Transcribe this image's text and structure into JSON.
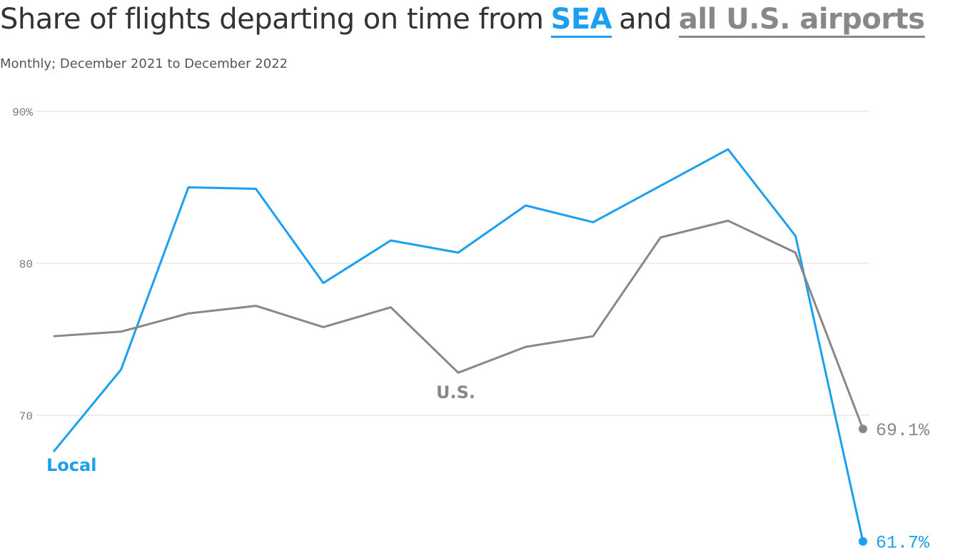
{
  "chart_data": {
    "type": "line",
    "title": "Share of flights departing on time from",
    "title_joiner": "and",
    "subtitle": "Monthly; December 2021 to December 2022",
    "series": [
      {
        "name": "SEA",
        "label": "Local",
        "color": "#1d9ff0",
        "values": [
          67.6,
          73.0,
          85.0,
          84.9,
          78.7,
          81.5,
          80.7,
          83.8,
          82.7,
          85.1,
          87.5,
          81.8,
          61.7
        ],
        "value_labels": [
          null,
          null,
          null,
          null,
          null,
          null,
          null,
          null,
          null,
          null,
          null,
          null,
          "61.7%"
        ]
      },
      {
        "name": "all U.S. airports",
        "label": "U.S.",
        "color": "#888888",
        "values": [
          75.2,
          75.5,
          76.7,
          77.2,
          75.8,
          77.1,
          72.8,
          74.5,
          75.2,
          81.7,
          82.8,
          80.7,
          69.1
        ],
        "value_labels": [
          null,
          null,
          null,
          null,
          null,
          null,
          null,
          null,
          null,
          null,
          null,
          null,
          "69.1%"
        ]
      }
    ],
    "ylim": [
      61.5,
      91.5
    ],
    "yticks": [
      70,
      80,
      {
        "value": 90,
        "label": "90%"
      }
    ],
    "grid": true
  }
}
